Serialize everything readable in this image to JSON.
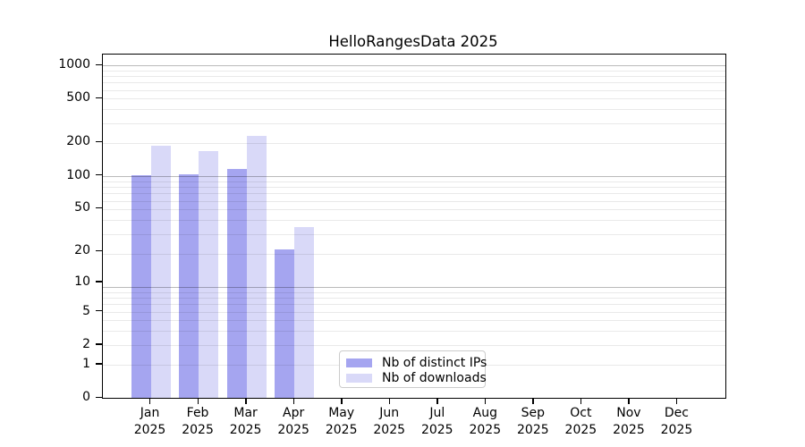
{
  "title": "HelloRangesData 2025",
  "legend": {
    "items": [
      {
        "label": "Nb of distinct IPs",
        "color": "#a5a5f0"
      },
      {
        "label": "Nb of downloads",
        "color": "#d9d9f8"
      }
    ]
  },
  "axes": {
    "year_label": "2025",
    "yticks": [
      0,
      1,
      2,
      5,
      10,
      20,
      50,
      100,
      200,
      500,
      1000
    ]
  },
  "chart_data": {
    "type": "bar",
    "title": "HelloRangesData 2025",
    "categories": [
      "Jan",
      "Feb",
      "Mar",
      "Apr",
      "May",
      "Jun",
      "Jul",
      "Aug",
      "Sep",
      "Oct",
      "Nov",
      "Dec"
    ],
    "year": "2025",
    "series": [
      {
        "name": "Nb of distinct IPs",
        "color": "#a5a5f0",
        "values": [
          101,
          103,
          115,
          21,
          0,
          0,
          0,
          0,
          0,
          0,
          0,
          0
        ]
      },
      {
        "name": "Nb of downloads",
        "color": "#d9d9f8",
        "values": [
          186,
          167,
          231,
          34,
          0,
          0,
          0,
          0,
          0,
          0,
          0,
          0
        ]
      }
    ],
    "xlabel": "",
    "ylabel": "",
    "yscale": "log1p",
    "yticks": [
      0,
      1,
      2,
      5,
      10,
      20,
      50,
      100,
      200,
      500,
      1000
    ],
    "ylim": [
      0,
      1250
    ],
    "grid": "horizontal major+minor, drawn over bars",
    "legend_position": "inside axes, lower-center-left"
  }
}
